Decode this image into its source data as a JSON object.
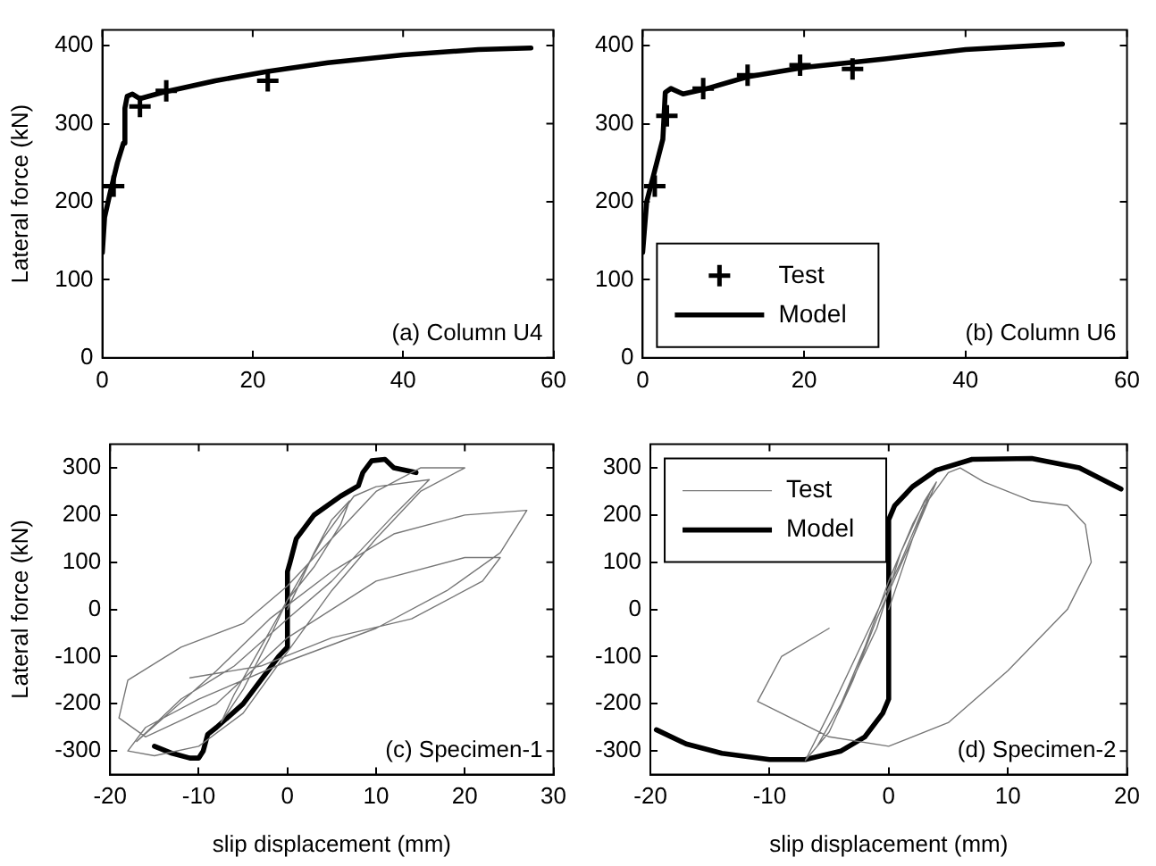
{
  "chart_data": [
    {
      "type": "line",
      "ylabel": "Lateral force (kN)",
      "xlim": [
        0,
        60
      ],
      "xticks": [
        0,
        20,
        40,
        60
      ],
      "ylim": [
        0,
        420
      ],
      "yticks": [
        0,
        100,
        200,
        300,
        400
      ],
      "grid": false,
      "annotations": [
        "(a) Column U4"
      ],
      "series": [
        {
          "type": "scatter",
          "marker": "cross",
          "color": "#000000",
          "x": [
            1.5,
            5,
            8.5,
            22
          ],
          "values": [
            220,
            322,
            342,
            355
          ]
        },
        {
          "type": "line",
          "color": "#000000",
          "x": [
            0,
            0.3,
            1,
            2,
            2.8,
            3,
            3.3,
            4,
            5,
            8,
            15,
            22,
            30,
            40,
            50,
            57
          ],
          "values": [
            135,
            180,
            210,
            250,
            275,
            320,
            335,
            338,
            332,
            340,
            355,
            367,
            378,
            388,
            395,
            397
          ]
        }
      ]
    },
    {
      "type": "line",
      "xlim": [
        0,
        60
      ],
      "xticks": [
        0,
        20,
        40,
        60
      ],
      "ylim": [
        0,
        420
      ],
      "yticks": [
        0,
        100,
        200,
        300,
        400
      ],
      "grid": false,
      "legend": "bottom left",
      "annotations": [
        "(b) Column U6"
      ],
      "series": [
        {
          "type": "scatter",
          "name": "Test",
          "marker": "cross",
          "color": "#000000",
          "x": [
            1.5,
            3,
            7.5,
            13,
            19.5,
            26
          ],
          "values": [
            220,
            310,
            345,
            362,
            375,
            370
          ]
        },
        {
          "type": "line",
          "name": "Model",
          "color": "#000000",
          "x": [
            0,
            0.5,
            1.5,
            2.5,
            2.8,
            3.5,
            5,
            8,
            13,
            20,
            30,
            40,
            52
          ],
          "values": [
            135,
            200,
            240,
            280,
            340,
            345,
            338,
            345,
            360,
            372,
            383,
            395,
            402
          ]
        }
      ]
    },
    {
      "type": "line",
      "xlabel": "slip displacement (mm)",
      "ylabel": "Lateral force (kN)",
      "xlim": [
        -20,
        30
      ],
      "xticks": [
        -20,
        -10,
        0,
        10,
        20,
        30
      ],
      "ylim": [
        -350,
        350
      ],
      "yticks": [
        -300,
        -200,
        -100,
        0,
        100,
        200,
        300
      ],
      "grid": false,
      "annotations": [
        "(c) Specimen-1"
      ],
      "series": [
        {
          "type": "line",
          "color": "#777777",
          "x": [
            0,
            3,
            5,
            7,
            6,
            3,
            0,
            -3,
            -6,
            -7.5,
            -5,
            -2,
            0,
            4,
            7.5,
            10,
            16,
            12,
            5,
            0,
            -6,
            -12,
            -17,
            -14,
            -8,
            -2,
            5,
            12,
            20,
            27,
            24,
            18,
            10,
            0,
            -10,
            -16,
            -18,
            -15,
            -10,
            -5,
            0,
            5,
            10,
            15,
            20,
            15,
            10,
            5,
            0,
            -5,
            -12,
            -18,
            -19,
            -16,
            -8,
            0,
            10,
            20,
            24,
            22,
            14,
            5,
            -3,
            -11
          ],
          "values": [
            0,
            120,
            190,
            230,
            180,
            90,
            20,
            -80,
            -180,
            -240,
            -170,
            -60,
            20,
            150,
            240,
            260,
            275,
            200,
            60,
            -20,
            -120,
            -190,
            -280,
            -230,
            -130,
            -20,
            80,
            160,
            200,
            210,
            120,
            40,
            -40,
            -110,
            -190,
            -250,
            -300,
            -310,
            -290,
            -220,
            -90,
            40,
            150,
            250,
            300,
            300,
            250,
            150,
            50,
            -30,
            -80,
            -150,
            -230,
            -270,
            -200,
            -60,
            60,
            110,
            110,
            60,
            -20,
            -60,
            -120,
            -145
          ]
        },
        {
          "type": "line",
          "color": "#000000",
          "x": [
            -15,
            -13,
            -11,
            -10,
            -9.5,
            -9,
            -8,
            -5,
            -3,
            -1,
            0,
            0,
            0.3,
            1,
            3,
            6,
            8,
            8.5,
            9.5,
            11,
            12,
            14.5
          ],
          "values": [
            -290,
            -305,
            -315,
            -315,
            -300,
            -265,
            -250,
            -200,
            -150,
            -100,
            -80,
            80,
            100,
            150,
            200,
            240,
            262,
            290,
            315,
            318,
            300,
            290
          ]
        }
      ]
    },
    {
      "type": "line",
      "xlabel": "slip displacement (mm)",
      "xlim": [
        -20,
        20
      ],
      "xticks": [
        -20,
        -10,
        0,
        10,
        20
      ],
      "ylim": [
        -350,
        350
      ],
      "yticks": [
        -300,
        -200,
        -100,
        0,
        100,
        200,
        300
      ],
      "grid": false,
      "legend": "top left",
      "annotations": [
        "(d) Specimen-2"
      ],
      "series": [
        {
          "type": "line",
          "name": "Test",
          "color": "#777777",
          "x": [
            0,
            2,
            3.5,
            2,
            0,
            -2,
            -4,
            -6,
            -4,
            -1,
            1,
            3,
            4,
            2,
            -1,
            -3,
            -5,
            -7,
            -5,
            -2,
            1,
            3,
            5,
            6,
            8,
            12,
            15,
            16.5,
            17,
            15,
            10,
            5,
            0,
            -5,
            -11,
            -9,
            -5
          ],
          "values": [
            0,
            150,
            250,
            180,
            60,
            -80,
            -200,
            -290,
            -200,
            -40,
            120,
            230,
            270,
            150,
            -20,
            -150,
            -260,
            -320,
            -220,
            -60,
            100,
            220,
            290,
            300,
            270,
            230,
            220,
            180,
            100,
            0,
            -130,
            -240,
            -290,
            -270,
            -195,
            -100,
            -40
          ]
        },
        {
          "type": "line",
          "name": "Model",
          "color": "#000000",
          "x": [
            -19.5,
            -17,
            -14,
            -10,
            -7,
            -4,
            -2,
            -0.5,
            0,
            0,
            0.5,
            2,
            4,
            7,
            12,
            16,
            19.5
          ],
          "values": [
            -255,
            -285,
            -305,
            -318,
            -318,
            -300,
            -270,
            -220,
            -190,
            190,
            220,
            260,
            295,
            318,
            320,
            300,
            255
          ]
        }
      ]
    }
  ]
}
